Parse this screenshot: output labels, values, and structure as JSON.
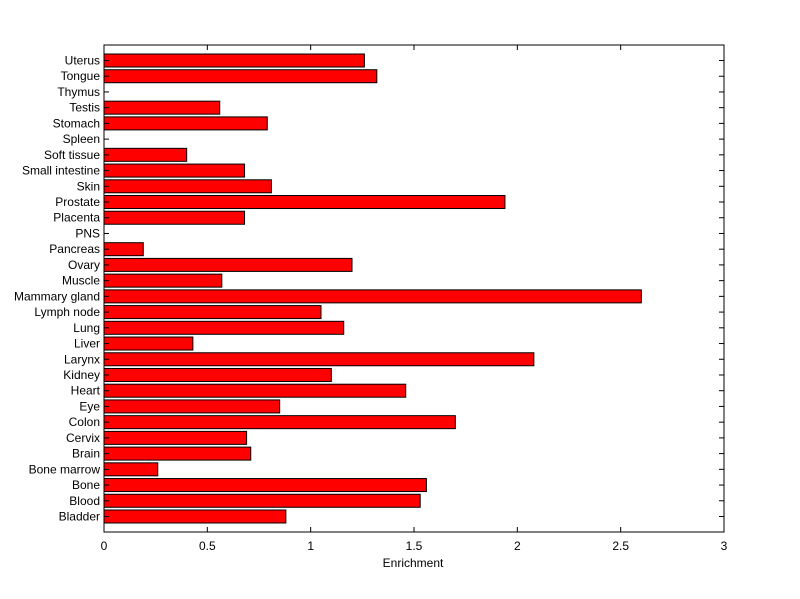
{
  "chart_data": {
    "type": "bar",
    "orientation": "horizontal",
    "title": "",
    "xlabel": "Enrichment",
    "ylabel": "",
    "xlim": [
      0,
      3
    ],
    "xticks": [
      "0",
      "0.5",
      "1",
      "1.5",
      "2",
      "2.5",
      "3"
    ],
    "grid": false,
    "bar_color": "#ff0000",
    "bar_edge_color": "#000000",
    "categories": [
      "Uterus",
      "Tongue",
      "Thymus",
      "Testis",
      "Stomach",
      "Spleen",
      "Soft tissue",
      "Small intestine",
      "Skin",
      "Prostate",
      "Placenta",
      "PNS",
      "Pancreas",
      "Ovary",
      "Muscle",
      "Mammary gland",
      "Lymph node",
      "Lung",
      "Liver",
      "Larynx",
      "Kidney",
      "Heart",
      "Eye",
      "Colon",
      "Cervix",
      "Brain",
      "Bone marrow",
      "Bone",
      "Blood",
      "Bladder"
    ],
    "values": [
      1.26,
      1.32,
      0,
      0.56,
      0.79,
      0,
      0.4,
      0.68,
      0.81,
      1.94,
      0.68,
      0,
      0.19,
      1.2,
      0.57,
      2.6,
      1.05,
      1.16,
      0.43,
      2.08,
      1.1,
      1.46,
      0.85,
      1.7,
      0.69,
      0.71,
      0.26,
      1.56,
      1.53,
      0.88
    ]
  }
}
